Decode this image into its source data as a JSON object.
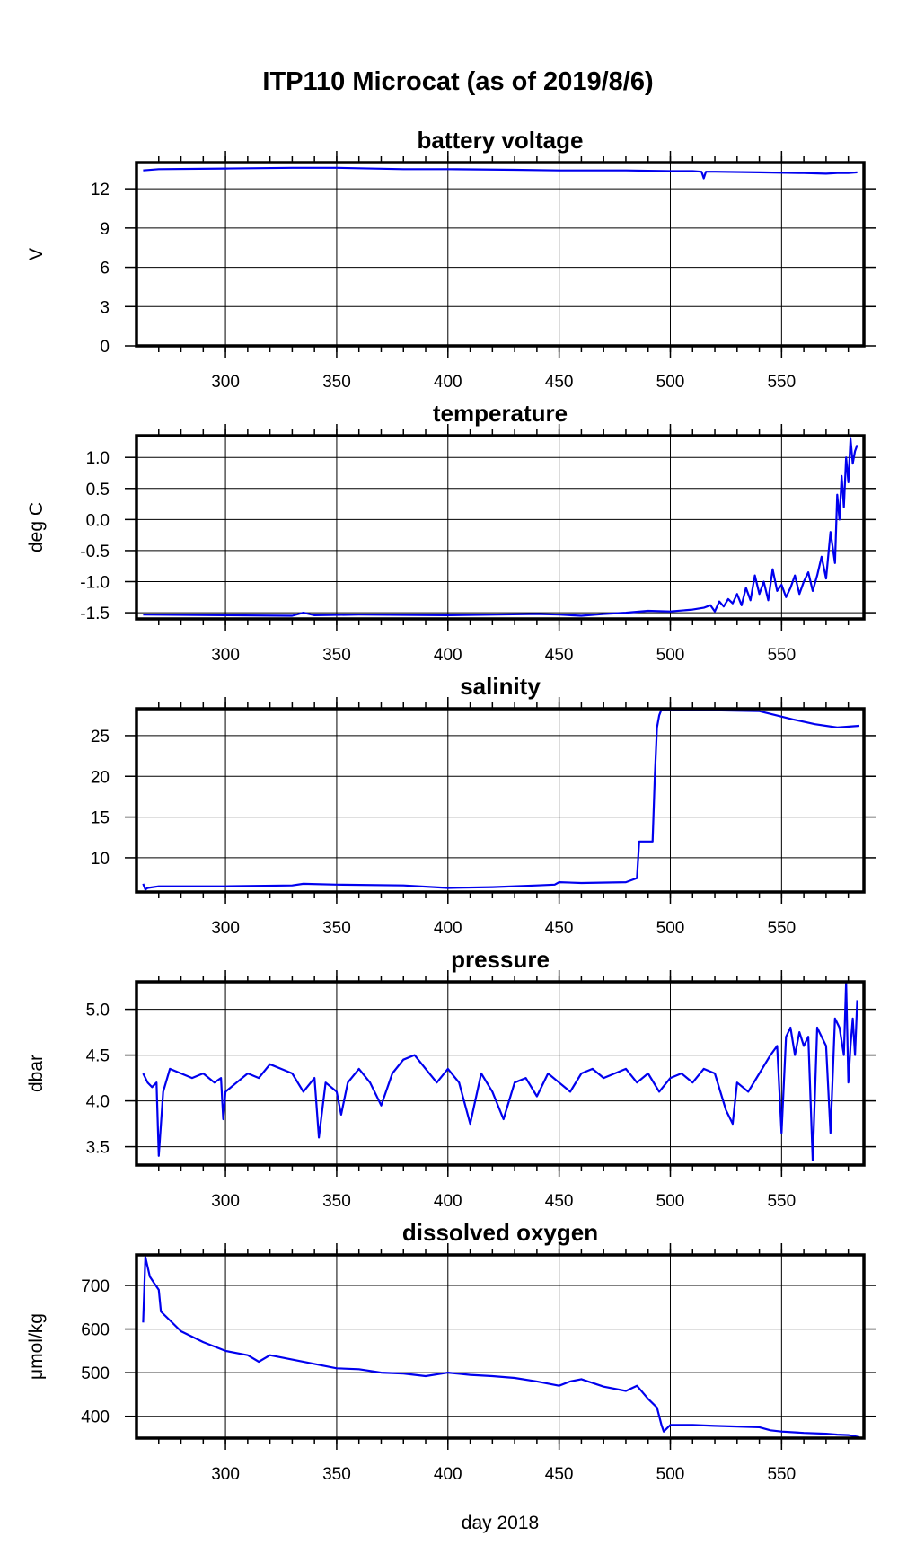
{
  "figure": {
    "title": "ITP110 Microcat  (as of 2019/8/6)",
    "xlabel": "day 2018"
  },
  "colors": {
    "series": "#0000ee",
    "grid": "#000000",
    "axis": "#000000"
  },
  "chart_data": [
    {
      "type": "line",
      "title": "battery voltage",
      "ylabel": "V",
      "xlim": [
        260,
        587
      ],
      "ylim": [
        0,
        14
      ],
      "xticks": [
        300,
        350,
        400,
        450,
        500,
        550
      ],
      "yticks": [
        0,
        3,
        6,
        9,
        12
      ],
      "ytick_labels": [
        "0",
        "3",
        "6",
        "9",
        "12"
      ],
      "series": [
        {
          "x": [
            263,
            270,
            300,
            330,
            350,
            380,
            400,
            430,
            450,
            480,
            500,
            510,
            514,
            515,
            516,
            520,
            540,
            560,
            570,
            575,
            580,
            584
          ],
          "y": [
            13.4,
            13.5,
            13.55,
            13.6,
            13.6,
            13.5,
            13.5,
            13.45,
            13.4,
            13.4,
            13.35,
            13.35,
            13.3,
            12.8,
            13.3,
            13.3,
            13.25,
            13.2,
            13.15,
            13.2,
            13.2,
            13.25
          ]
        }
      ]
    },
    {
      "type": "line",
      "title": "temperature",
      "ylabel": "deg C",
      "xlim": [
        260,
        587
      ],
      "ylim": [
        -1.6,
        1.35
      ],
      "xticks": [
        300,
        350,
        400,
        450,
        500,
        550
      ],
      "yticks": [
        -1.5,
        -1.0,
        -0.5,
        0.0,
        0.5,
        1.0
      ],
      "ytick_labels": [
        "-1.5",
        "-1.0",
        "-0.5",
        "0.0",
        "0.5",
        "1.0"
      ],
      "series": [
        {
          "x": [
            263,
            300,
            330,
            335,
            340,
            360,
            400,
            440,
            450,
            460,
            470,
            480,
            490,
            500,
            510,
            515,
            518,
            520,
            522,
            524,
            526,
            528,
            530,
            532,
            534,
            536,
            538,
            540,
            542,
            544,
            546,
            548,
            550,
            552,
            554,
            556,
            558,
            560,
            562,
            564,
            566,
            568,
            570,
            572,
            574,
            575,
            576,
            577,
            578,
            579,
            580,
            581,
            582,
            583,
            584
          ],
          "y": [
            -1.53,
            -1.54,
            -1.55,
            -1.5,
            -1.54,
            -1.53,
            -1.54,
            -1.52,
            -1.53,
            -1.55,
            -1.52,
            -1.5,
            -1.47,
            -1.48,
            -1.45,
            -1.42,
            -1.38,
            -1.48,
            -1.32,
            -1.4,
            -1.28,
            -1.35,
            -1.2,
            -1.38,
            -1.1,
            -1.3,
            -0.9,
            -1.2,
            -1.0,
            -1.3,
            -0.8,
            -1.15,
            -1.05,
            -1.25,
            -1.1,
            -0.9,
            -1.2,
            -1.0,
            -0.85,
            -1.15,
            -0.9,
            -0.6,
            -0.95,
            -0.2,
            -0.7,
            0.4,
            0.0,
            0.7,
            0.2,
            1.0,
            0.6,
            1.3,
            0.9,
            1.1,
            1.2
          ]
        }
      ]
    },
    {
      "type": "line",
      "title": "salinity",
      "ylabel": "",
      "xlim": [
        260,
        587
      ],
      "ylim": [
        5.8,
        28.3
      ],
      "xticks": [
        300,
        350,
        400,
        450,
        500,
        550
      ],
      "yticks": [
        10,
        15,
        20,
        25
      ],
      "ytick_labels": [
        "10",
        "15",
        "20",
        "25"
      ],
      "series": [
        {
          "x": [
            263,
            264,
            265,
            270,
            300,
            330,
            335,
            350,
            380,
            400,
            420,
            440,
            448,
            450,
            460,
            480,
            485,
            486,
            487,
            490,
            492,
            493,
            494,
            495,
            496,
            500,
            520,
            540,
            555,
            565,
            575,
            585
          ],
          "y": [
            6.8,
            6.1,
            6.3,
            6.5,
            6.5,
            6.6,
            6.8,
            6.7,
            6.6,
            6.3,
            6.4,
            6.6,
            6.7,
            7.0,
            6.9,
            7.0,
            7.5,
            12.0,
            12.0,
            12.0,
            12.0,
            20.0,
            26.0,
            27.5,
            28.2,
            28.1,
            28.1,
            28.0,
            27.0,
            26.4,
            26.0,
            26.2
          ]
        }
      ]
    },
    {
      "type": "line",
      "title": "pressure",
      "ylabel": "dbar",
      "xlim": [
        260,
        587
      ],
      "ylim": [
        3.3,
        5.3
      ],
      "xticks": [
        300,
        350,
        400,
        450,
        500,
        550
      ],
      "yticks": [
        3.5,
        4.0,
        4.5,
        5.0
      ],
      "ytick_labels": [
        "3.5",
        "4.0",
        "4.5",
        "5.0"
      ],
      "series": [
        {
          "x": [
            263,
            265,
            267,
            269,
            270,
            272,
            275,
            280,
            285,
            290,
            295,
            298,
            299,
            300,
            305,
            310,
            315,
            320,
            325,
            330,
            335,
            340,
            342,
            345,
            350,
            352,
            355,
            360,
            365,
            370,
            375,
            380,
            385,
            390,
            395,
            400,
            405,
            410,
            415,
            420,
            425,
            430,
            435,
            440,
            445,
            450,
            455,
            460,
            465,
            470,
            475,
            480,
            485,
            490,
            495,
            500,
            505,
            510,
            515,
            520,
            525,
            528,
            530,
            535,
            540,
            545,
            548,
            550,
            552,
            554,
            556,
            558,
            560,
            562,
            564,
            566,
            568,
            570,
            572,
            574,
            576,
            578,
            579,
            580,
            581,
            582,
            583,
            584
          ],
          "y": [
            4.3,
            4.2,
            4.15,
            4.2,
            3.4,
            4.1,
            4.35,
            4.3,
            4.25,
            4.3,
            4.2,
            4.25,
            3.8,
            4.1,
            4.2,
            4.3,
            4.25,
            4.4,
            4.35,
            4.3,
            4.1,
            4.25,
            3.6,
            4.2,
            4.1,
            3.85,
            4.2,
            4.35,
            4.2,
            3.95,
            4.3,
            4.45,
            4.5,
            4.35,
            4.2,
            4.35,
            4.2,
            3.75,
            4.3,
            4.1,
            3.8,
            4.2,
            4.25,
            4.05,
            4.3,
            4.2,
            4.1,
            4.3,
            4.35,
            4.25,
            4.3,
            4.35,
            4.2,
            4.3,
            4.1,
            4.25,
            4.3,
            4.2,
            4.35,
            4.3,
            3.9,
            3.75,
            4.2,
            4.1,
            4.3,
            4.5,
            4.6,
            3.65,
            4.7,
            4.8,
            4.5,
            4.75,
            4.6,
            4.7,
            3.35,
            4.8,
            4.7,
            4.6,
            3.65,
            4.9,
            4.8,
            4.5,
            5.3,
            4.2,
            4.6,
            4.9,
            4.5,
            5.1
          ]
        }
      ]
    },
    {
      "type": "line",
      "title": "dissolved oxygen",
      "ylabel": "μmol/kg",
      "xlim": [
        260,
        587
      ],
      "ylim": [
        350,
        770
      ],
      "xticks": [
        300,
        350,
        400,
        450,
        500,
        550
      ],
      "yticks": [
        400,
        500,
        600,
        700
      ],
      "ytick_labels": [
        "400",
        "500",
        "600",
        "700"
      ],
      "series": [
        {
          "x": [
            263,
            264,
            266,
            268,
            270,
            271,
            275,
            280,
            290,
            300,
            310,
            315,
            320,
            330,
            340,
            350,
            360,
            370,
            380,
            390,
            400,
            410,
            420,
            430,
            440,
            450,
            455,
            460,
            470,
            480,
            485,
            490,
            494,
            496,
            497,
            500,
            510,
            520,
            540,
            545,
            550,
            560,
            570,
            575,
            580,
            585
          ],
          "y": [
            615,
            765,
            720,
            705,
            690,
            640,
            620,
            595,
            570,
            550,
            540,
            525,
            540,
            530,
            520,
            510,
            508,
            500,
            498,
            492,
            500,
            495,
            492,
            488,
            480,
            470,
            480,
            485,
            468,
            458,
            470,
            440,
            420,
            380,
            365,
            380,
            380,
            378,
            375,
            368,
            365,
            362,
            360,
            358,
            357,
            352
          ]
        }
      ]
    }
  ]
}
